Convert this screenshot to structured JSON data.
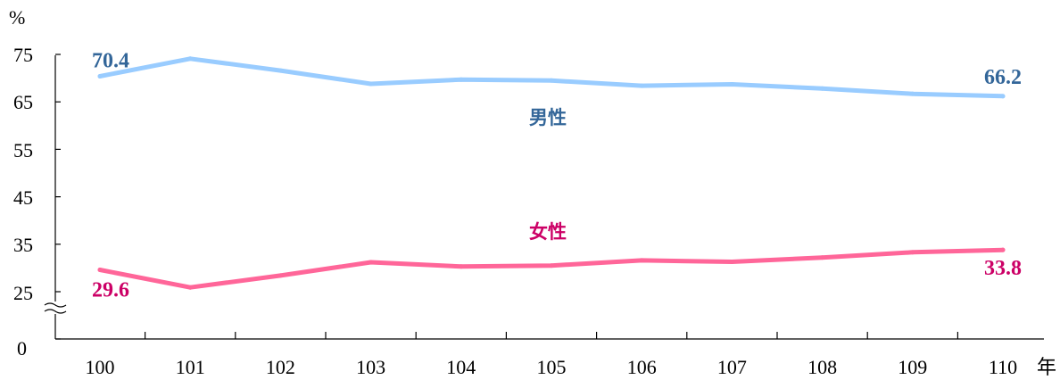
{
  "chart_data": {
    "type": "line",
    "title": "",
    "xlabel": "年",
    "ylabel": "%",
    "categories": [
      "100",
      "101",
      "102",
      "103",
      "104",
      "105",
      "106",
      "107",
      "108",
      "109",
      "110"
    ],
    "y_ticks": [
      "0",
      "25",
      "35",
      "45",
      "55",
      "65",
      "75"
    ],
    "ylim": [
      25,
      75
    ],
    "axis_break": true,
    "grid": false,
    "series": [
      {
        "name": "男性",
        "color": "#99ccff",
        "label_color": "#336699",
        "values": [
          70.4,
          74.1,
          71.6,
          68.8,
          69.7,
          69.5,
          68.4,
          68.7,
          67.8,
          66.7,
          66.2
        ],
        "first_label": "70.4",
        "last_label": "66.2"
      },
      {
        "name": "女性",
        "color": "#ff6699",
        "label_color": "#cc0066",
        "values": [
          29.6,
          25.9,
          28.4,
          31.2,
          30.3,
          30.5,
          31.6,
          31.3,
          32.2,
          33.3,
          33.8
        ],
        "first_label": "29.6",
        "last_label": "33.8"
      }
    ]
  }
}
